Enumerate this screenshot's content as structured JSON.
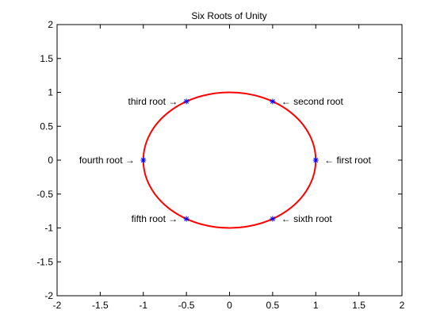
{
  "chart_data": {
    "type": "scatter",
    "title": "Six Roots of Unity",
    "xlabel": "",
    "ylabel": "",
    "xlim": [
      -2,
      2
    ],
    "ylim": [
      -2,
      2
    ],
    "grid": false,
    "x_ticks": [
      -2,
      -1.5,
      -1,
      -0.5,
      0,
      0.5,
      1,
      1.5,
      2
    ],
    "y_ticks": [
      -2,
      -1.5,
      -1,
      -0.5,
      0,
      0.5,
      1,
      1.5,
      2
    ],
    "x_tick_labels": [
      "-2",
      "-1.5",
      "-1",
      "-0.5",
      "0",
      "0.5",
      "1",
      "1.5",
      "2"
    ],
    "y_tick_labels": [
      "-2",
      "-1.5",
      "-1",
      "-0.5",
      "0",
      "0.5",
      "1",
      "1.5",
      "2"
    ],
    "unit_circle": {
      "center": [
        0,
        0
      ],
      "radius": 1,
      "color": "#ff0000"
    },
    "marker_color": "#0000ff",
    "points": [
      {
        "x": 1,
        "y": 0,
        "label": "← first root",
        "side": "right"
      },
      {
        "x": 0.5,
        "y": 0.866,
        "label": "← second root",
        "side": "right"
      },
      {
        "x": -0.5,
        "y": 0.866,
        "label": "third root →",
        "side": "left"
      },
      {
        "x": -1,
        "y": 0,
        "label": "fourth root →",
        "side": "left"
      },
      {
        "x": -0.5,
        "y": -0.866,
        "label": "fifth root →",
        "side": "left"
      },
      {
        "x": 0.5,
        "y": -0.866,
        "label": "← sixth root",
        "side": "right"
      }
    ]
  }
}
